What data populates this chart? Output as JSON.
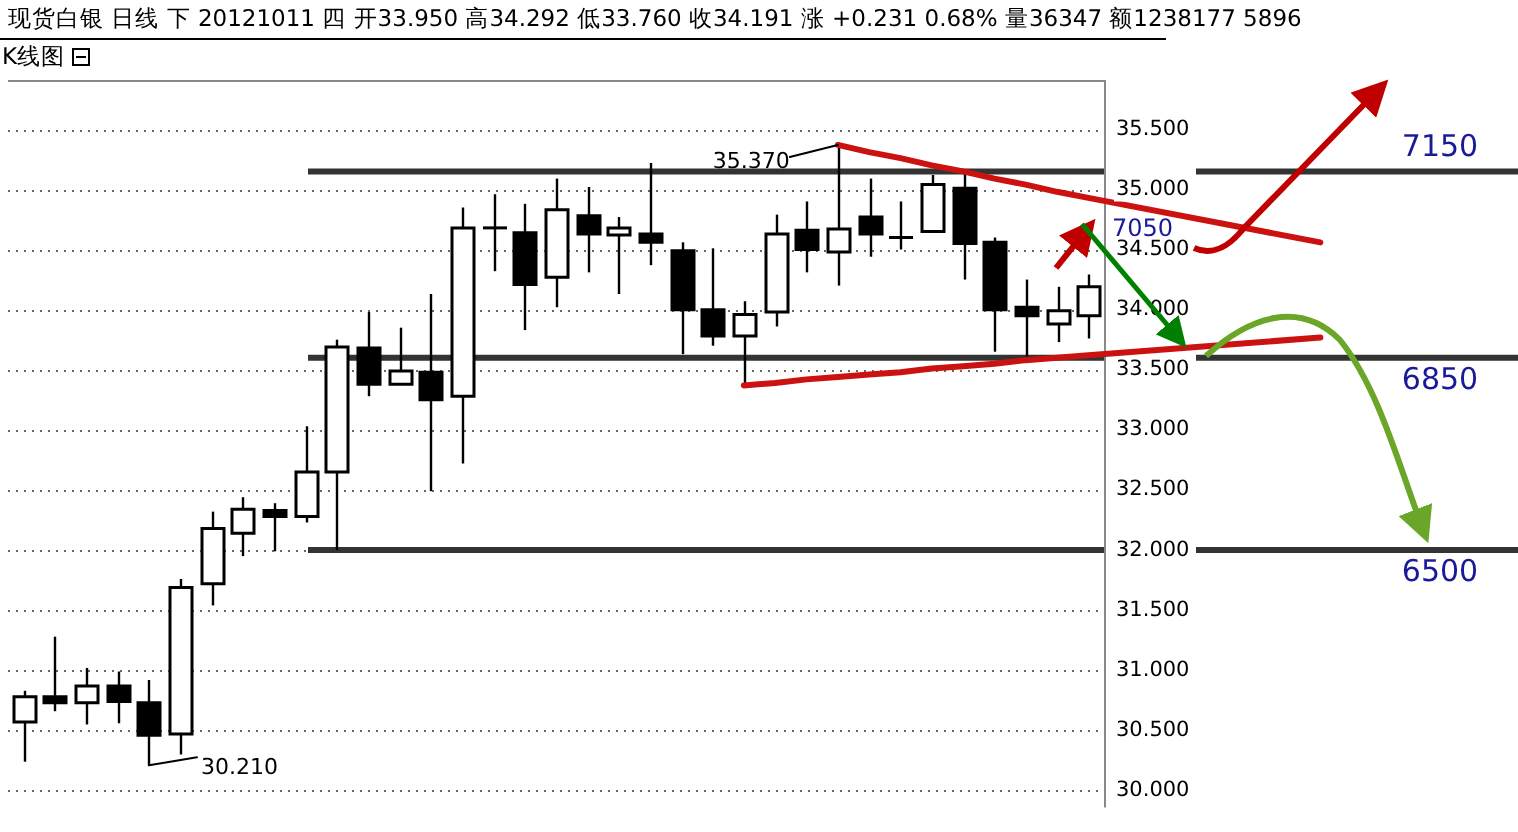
{
  "chart_data": {
    "type": "candlestick",
    "title": "现货白银 日线 下 20121011 四 开33.950 高34.292 低33.760 收34.191 涨 +0.231 0.68% 量36347 额1238177 5896",
    "subtitle": "K线图",
    "categories": [
      null,
      null,
      null,
      null,
      null,
      null,
      null,
      null,
      null,
      null,
      null,
      null,
      null,
      null,
      null,
      null,
      null,
      null,
      null,
      null,
      null,
      null,
      null,
      null,
      null,
      null,
      null,
      null,
      null,
      null,
      null,
      null,
      null,
      null,
      null
    ],
    "color": "#000000",
    "colors": [
      "#ffffff",
      "#000000",
      "#ffffff",
      "#000000",
      "#000000",
      "#ffffff",
      "#ffffff",
      "#ffffff",
      "#000000",
      "#ffffff",
      "#ffffff",
      "#000000",
      "#ffffff",
      "#000000",
      "#ffffff",
      "#000000",
      "#000000",
      "#ffffff",
      "#000000",
      "#ffffff",
      "#000000",
      "#000000",
      "#000000",
      "#ffffff",
      "#ffffff",
      "#000000",
      "#ffffff",
      "#000000",
      "#000000",
      "#ffffff",
      "#000000",
      "#000000",
      "#000000",
      "#ffffff",
      "#ffffff"
    ],
    "ohlc": [
      [
        30.57,
        30.83,
        30.24,
        30.78
      ],
      [
        30.78,
        31.28,
        30.66,
        30.73
      ],
      [
        30.73,
        31.02,
        30.55,
        30.87
      ],
      [
        30.87,
        30.99,
        30.56,
        30.74
      ],
      [
        30.73,
        30.92,
        30.21,
        30.46
      ],
      [
        30.47,
        31.76,
        30.3,
        31.69
      ],
      [
        31.72,
        32.32,
        31.54,
        32.18
      ],
      [
        32.14,
        32.44,
        31.95,
        32.34
      ],
      [
        32.33,
        32.39,
        31.99,
        32.28
      ],
      [
        32.28,
        33.03,
        32.23,
        32.65
      ],
      [
        32.65,
        33.75,
        32.0,
        33.69
      ],
      [
        33.68,
        33.98,
        33.28,
        33.38
      ],
      [
        33.38,
        33.85,
        33.38,
        33.49
      ],
      [
        33.48,
        34.13,
        32.49,
        33.25
      ],
      [
        33.28,
        34.85,
        32.72,
        34.68
      ],
      [
        34.68,
        34.96,
        34.32,
        34.68
      ],
      [
        34.64,
        34.88,
        33.83,
        34.21
      ],
      [
        34.27,
        35.09,
        34.02,
        34.83
      ],
      [
        34.78,
        35.02,
        34.31,
        34.63
      ],
      [
        34.62,
        34.77,
        34.13,
        34.68
      ],
      [
        34.63,
        35.22,
        34.37,
        34.56
      ],
      [
        34.49,
        34.56,
        33.63,
        34.0
      ],
      [
        34.0,
        34.51,
        33.7,
        33.78
      ],
      [
        33.78,
        34.07,
        33.37,
        33.96
      ],
      [
        33.98,
        34.79,
        33.86,
        34.63
      ],
      [
        34.66,
        34.9,
        34.31,
        34.5
      ],
      [
        34.48,
        35.37,
        34.2,
        34.67
      ],
      [
        34.77,
        35.09,
        34.44,
        34.63
      ],
      [
        34.6,
        34.9,
        34.5,
        34.6
      ],
      [
        34.65,
        35.12,
        34.65,
        35.04
      ],
      [
        35.01,
        35.14,
        34.25,
        34.55
      ],
      [
        34.56,
        34.6,
        33.65,
        34.0
      ],
      [
        34.02,
        34.25,
        33.61,
        33.95
      ],
      [
        33.88,
        34.19,
        33.73,
        33.99
      ],
      [
        33.95,
        34.292,
        33.76,
        34.191
      ]
    ],
    "series": [
      {
        "type": "line",
        "color": "#cc1111",
        "values": [
          null,
          null,
          null,
          null,
          null,
          null,
          null,
          null,
          null,
          null,
          null,
          null,
          null,
          null,
          null,
          null,
          null,
          null,
          null,
          null,
          null,
          null,
          null,
          null,
          null,
          null,
          35.37,
          35.31,
          35.26,
          35.2,
          35.15,
          35.09,
          35.04,
          34.98,
          34.93
        ]
      },
      {
        "type": "line",
        "color": "#cc1111",
        "values": [
          null,
          null,
          null,
          null,
          null,
          null,
          null,
          null,
          null,
          null,
          null,
          null,
          null,
          null,
          null,
          null,
          null,
          null,
          null,
          null,
          null,
          null,
          null,
          33.37,
          33.39,
          33.42,
          33.44,
          33.46,
          33.48,
          33.51,
          33.53,
          33.55,
          33.58,
          33.6,
          33.62
        ]
      }
    ],
    "ylim": [
      29.86,
      35.91
    ],
    "yticks": [
      {
        "value": 30,
        "label": "30.000"
      },
      {
        "value": 30.5,
        "label": "30.500"
      },
      {
        "value": 31,
        "label": "31.000"
      },
      {
        "value": 31.5,
        "label": "31.500"
      },
      {
        "value": 32,
        "label": "32.000"
      },
      {
        "value": 32.5,
        "label": "32.500"
      },
      {
        "value": 33,
        "label": "33.000"
      },
      {
        "value": 33.5,
        "label": "33.500"
      },
      {
        "value": 34,
        "label": "34.000"
      },
      {
        "value": 34.5,
        "label": "34.500"
      },
      {
        "value": 35,
        "label": "35.000"
      },
      {
        "value": 35.5,
        "label": "35.500"
      }
    ],
    "grid": "y",
    "ref_lines": [
      {
        "axis": "y",
        "value": 35.15,
        "color": "#333333"
      },
      {
        "axis": "y",
        "value": 33.6,
        "color": "#333333"
      },
      {
        "axis": "y",
        "value": 32.0,
        "color": "#333333"
      }
    ],
    "annotations": [
      "35.370",
      "30.210",
      "7050",
      "7150",
      "6850",
      "6500"
    ]
  }
}
